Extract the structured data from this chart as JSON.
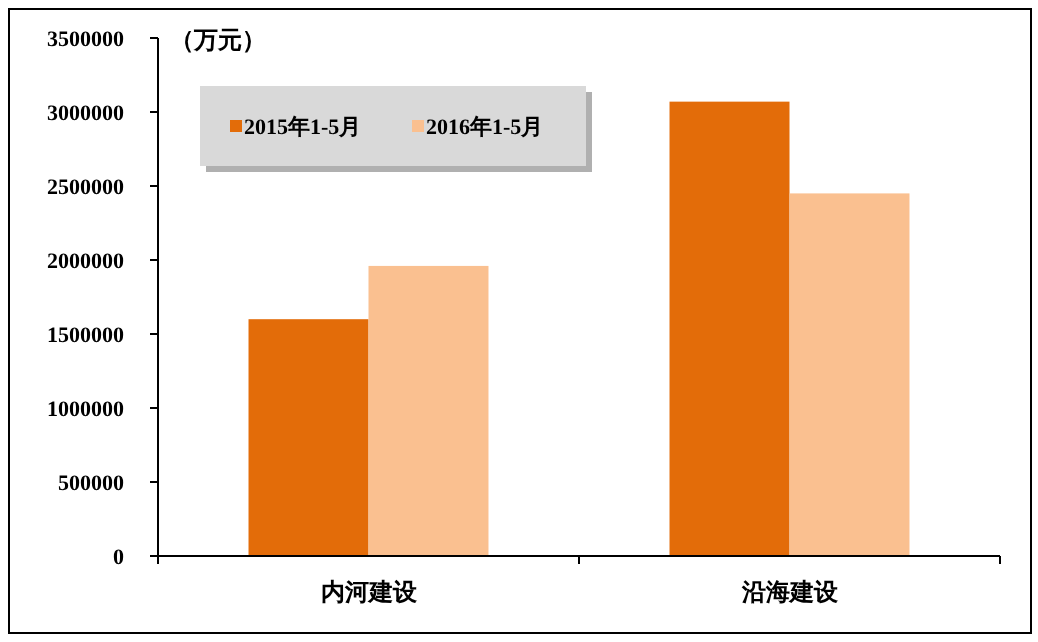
{
  "chart_data": {
    "type": "bar",
    "ylabel": "（万元）",
    "categories": [
      "内河建设",
      "沿海建设"
    ],
    "series": [
      {
        "name": "2015年1-5月",
        "color": "#e36c09",
        "values": [
          1600000,
          3070000
        ]
      },
      {
        "name": "2016年1-5月",
        "color": "#fac090",
        "values": [
          1960000,
          2450000
        ]
      }
    ],
    "ylim": [
      0,
      3500000
    ],
    "yticks": [
      0,
      500000,
      1000000,
      1500000,
      2000000,
      2500000,
      3000000,
      3500000
    ],
    "legend": "top left"
  }
}
